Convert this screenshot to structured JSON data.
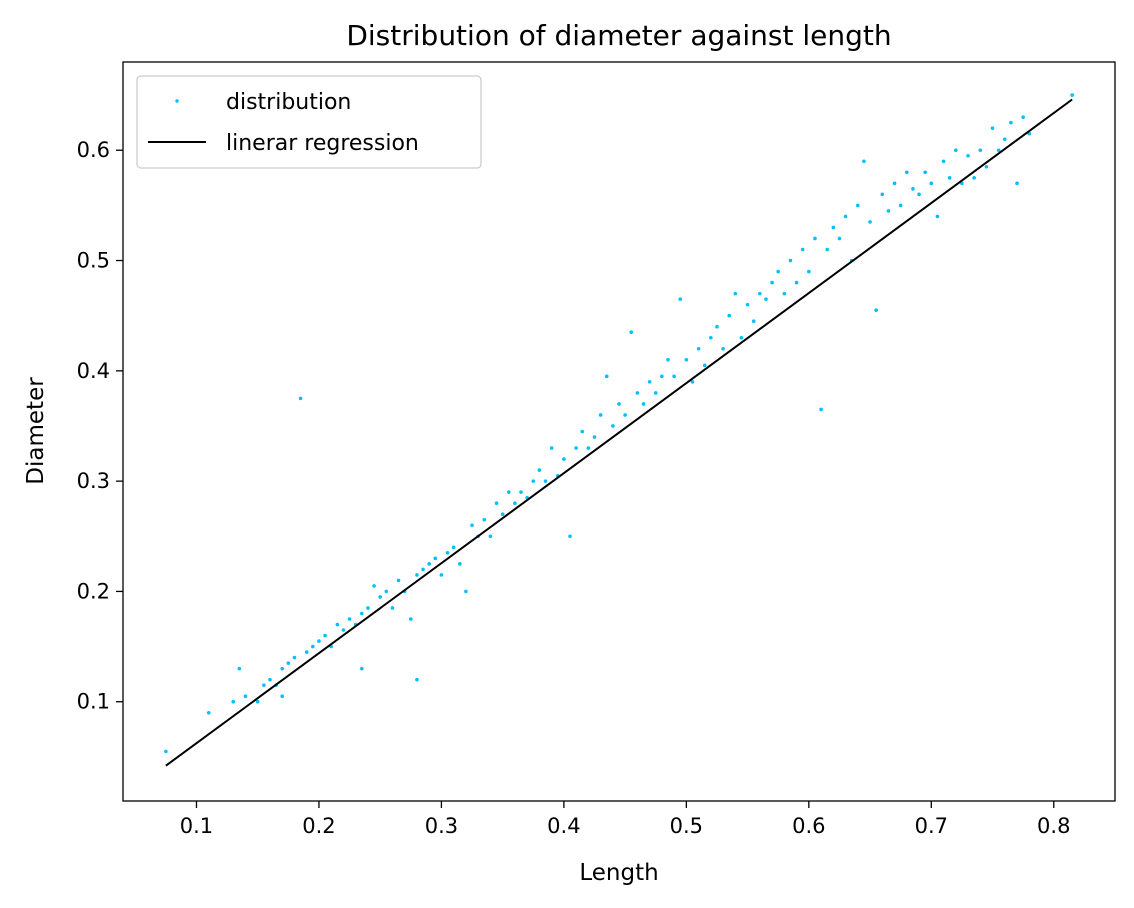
{
  "chart_data": {
    "type": "scatter",
    "title": "Distribution of diameter against length",
    "xlabel": "Length",
    "ylabel": "Diameter",
    "xlim": [
      0.04,
      0.85
    ],
    "ylim": [
      0.01,
      0.68
    ],
    "xticks": [
      0.1,
      0.2,
      0.3,
      0.4,
      0.5,
      0.6,
      0.7,
      0.8
    ],
    "yticks": [
      0.1,
      0.2,
      0.3,
      0.4,
      0.5,
      0.6
    ],
    "xtick_labels": [
      "0.1",
      "0.2",
      "0.3",
      "0.4",
      "0.5",
      "0.6",
      "0.7",
      "0.8"
    ],
    "ytick_labels": [
      "0.1",
      "0.2",
      "0.3",
      "0.4",
      "0.5",
      "0.6"
    ],
    "grid": false,
    "legend": {
      "position": "top-left",
      "entries": [
        {
          "label": "distribution",
          "kind": "marker"
        },
        {
          "label": "linerar regression",
          "kind": "line"
        }
      ]
    },
    "series": [
      {
        "name": "distribution",
        "type": "scatter",
        "color": "#00bfff",
        "points": [
          [
            0.075,
            0.055
          ],
          [
            0.11,
            0.09
          ],
          [
            0.13,
            0.1
          ],
          [
            0.135,
            0.13
          ],
          [
            0.14,
            0.105
          ],
          [
            0.15,
            0.1
          ],
          [
            0.155,
            0.115
          ],
          [
            0.16,
            0.12
          ],
          [
            0.165,
            0.115
          ],
          [
            0.17,
            0.13
          ],
          [
            0.17,
            0.105
          ],
          [
            0.175,
            0.135
          ],
          [
            0.18,
            0.14
          ],
          [
            0.185,
            0.375
          ],
          [
            0.19,
            0.145
          ],
          [
            0.195,
            0.15
          ],
          [
            0.2,
            0.155
          ],
          [
            0.205,
            0.16
          ],
          [
            0.21,
            0.15
          ],
          [
            0.215,
            0.17
          ],
          [
            0.22,
            0.165
          ],
          [
            0.225,
            0.175
          ],
          [
            0.23,
            0.17
          ],
          [
            0.235,
            0.13
          ],
          [
            0.235,
            0.18
          ],
          [
            0.24,
            0.185
          ],
          [
            0.245,
            0.205
          ],
          [
            0.25,
            0.195
          ],
          [
            0.255,
            0.2
          ],
          [
            0.26,
            0.185
          ],
          [
            0.265,
            0.21
          ],
          [
            0.27,
            0.2
          ],
          [
            0.275,
            0.175
          ],
          [
            0.28,
            0.215
          ],
          [
            0.28,
            0.12
          ],
          [
            0.285,
            0.22
          ],
          [
            0.29,
            0.225
          ],
          [
            0.295,
            0.23
          ],
          [
            0.3,
            0.215
          ],
          [
            0.305,
            0.235
          ],
          [
            0.31,
            0.24
          ],
          [
            0.315,
            0.225
          ],
          [
            0.32,
            0.2
          ],
          [
            0.325,
            0.26
          ],
          [
            0.33,
            0.25
          ],
          [
            0.335,
            0.265
          ],
          [
            0.34,
            0.25
          ],
          [
            0.345,
            0.28
          ],
          [
            0.35,
            0.27
          ],
          [
            0.355,
            0.29
          ],
          [
            0.36,
            0.28
          ],
          [
            0.365,
            0.29
          ],
          [
            0.37,
            0.285
          ],
          [
            0.375,
            0.3
          ],
          [
            0.38,
            0.31
          ],
          [
            0.385,
            0.3
          ],
          [
            0.39,
            0.33
          ],
          [
            0.395,
            0.305
          ],
          [
            0.4,
            0.32
          ],
          [
            0.405,
            0.25
          ],
          [
            0.41,
            0.33
          ],
          [
            0.415,
            0.345
          ],
          [
            0.42,
            0.33
          ],
          [
            0.425,
            0.34
          ],
          [
            0.43,
            0.36
          ],
          [
            0.435,
            0.395
          ],
          [
            0.44,
            0.35
          ],
          [
            0.445,
            0.37
          ],
          [
            0.45,
            0.36
          ],
          [
            0.455,
            0.435
          ],
          [
            0.46,
            0.38
          ],
          [
            0.465,
            0.37
          ],
          [
            0.47,
            0.39
          ],
          [
            0.475,
            0.38
          ],
          [
            0.48,
            0.395
          ],
          [
            0.485,
            0.41
          ],
          [
            0.49,
            0.395
          ],
          [
            0.495,
            0.465
          ],
          [
            0.5,
            0.41
          ],
          [
            0.505,
            0.39
          ],
          [
            0.51,
            0.42
          ],
          [
            0.515,
            0.405
          ],
          [
            0.52,
            0.43
          ],
          [
            0.525,
            0.44
          ],
          [
            0.53,
            0.42
          ],
          [
            0.535,
            0.45
          ],
          [
            0.54,
            0.47
          ],
          [
            0.545,
            0.43
          ],
          [
            0.55,
            0.46
          ],
          [
            0.555,
            0.445
          ],
          [
            0.56,
            0.47
          ],
          [
            0.565,
            0.465
          ],
          [
            0.57,
            0.48
          ],
          [
            0.575,
            0.49
          ],
          [
            0.58,
            0.47
          ],
          [
            0.585,
            0.5
          ],
          [
            0.59,
            0.48
          ],
          [
            0.595,
            0.51
          ],
          [
            0.6,
            0.49
          ],
          [
            0.605,
            0.52
          ],
          [
            0.61,
            0.365
          ],
          [
            0.615,
            0.51
          ],
          [
            0.62,
            0.53
          ],
          [
            0.625,
            0.52
          ],
          [
            0.63,
            0.54
          ],
          [
            0.635,
            0.5
          ],
          [
            0.64,
            0.55
          ],
          [
            0.645,
            0.59
          ],
          [
            0.65,
            0.535
          ],
          [
            0.655,
            0.455
          ],
          [
            0.66,
            0.56
          ],
          [
            0.665,
            0.545
          ],
          [
            0.67,
            0.57
          ],
          [
            0.675,
            0.55
          ],
          [
            0.68,
            0.58
          ],
          [
            0.685,
            0.565
          ],
          [
            0.69,
            0.56
          ],
          [
            0.695,
            0.58
          ],
          [
            0.7,
            0.57
          ],
          [
            0.705,
            0.54
          ],
          [
            0.71,
            0.59
          ],
          [
            0.715,
            0.575
          ],
          [
            0.72,
            0.6
          ],
          [
            0.725,
            0.57
          ],
          [
            0.73,
            0.595
          ],
          [
            0.735,
            0.575
          ],
          [
            0.74,
            0.6
          ],
          [
            0.745,
            0.585
          ],
          [
            0.75,
            0.62
          ],
          [
            0.755,
            0.6
          ],
          [
            0.76,
            0.61
          ],
          [
            0.765,
            0.625
          ],
          [
            0.77,
            0.57
          ],
          [
            0.775,
            0.63
          ],
          [
            0.78,
            0.615
          ],
          [
            0.815,
            0.65
          ]
        ]
      },
      {
        "name": "linerar regression",
        "type": "line",
        "color": "#000000",
        "points": [
          [
            0.075,
            0.042
          ],
          [
            0.815,
            0.646
          ]
        ]
      }
    ]
  }
}
